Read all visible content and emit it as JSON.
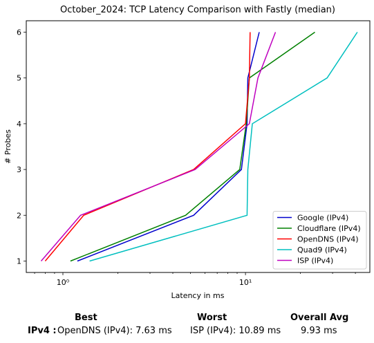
{
  "chart_data": {
    "type": "line",
    "title": "October_2024: TCP Latency Comparison with Fastly (median)",
    "xlabel": "Latency in ms",
    "ylabel": "# Probes",
    "xscale": "log",
    "xlim": [
      0.63,
      48
    ],
    "ylim": [
      0.75,
      6.25
    ],
    "x_ticks": [
      {
        "value": 1,
        "label": "10⁰"
      },
      {
        "value": 10,
        "label": "10¹"
      }
    ],
    "y_ticks": [
      1,
      2,
      3,
      4,
      5,
      6
    ],
    "grid": false,
    "legend_position": "bottom-right",
    "series": [
      {
        "name": "Google (IPv4)",
        "color": "#0000cc",
        "x": [
          1.2,
          5.2,
          9.5,
          10.2,
          10.3,
          11.9
        ],
        "y": [
          1,
          2,
          3,
          4,
          5,
          6
        ]
      },
      {
        "name": "Cloudflare (IPv4)",
        "color": "#008000",
        "x": [
          1.1,
          4.7,
          9.3,
          10.1,
          10.5,
          24.0
        ],
        "y": [
          1,
          2,
          3,
          4,
          5,
          6
        ]
      },
      {
        "name": "OpenDNS (IPv4)",
        "color": "#ff0000",
        "x": [
          0.8,
          1.3,
          5.2,
          10.0,
          10.5,
          10.6
        ],
        "y": [
          1,
          2,
          3,
          4,
          5,
          6
        ]
      },
      {
        "name": "Quad9 (IPv4)",
        "color": "#00bfbf",
        "x": [
          1.4,
          10.2,
          10.3,
          10.9,
          28.0,
          41.0
        ],
        "y": [
          1,
          2,
          3,
          4,
          5,
          6
        ]
      },
      {
        "name": "ISP (IPv4)",
        "color": "#bf00bf",
        "x": [
          0.76,
          1.25,
          5.3,
          10.5,
          11.7,
          14.6
        ],
        "y": [
          1,
          2,
          3,
          4,
          5,
          6
        ]
      }
    ]
  },
  "summary": {
    "best_header": "Best",
    "worst_header": "Worst",
    "avg_header": "Overall Avg",
    "row_label": "IPv4 :",
    "best_value": "OpenDNS (IPv4): 7.63 ms",
    "worst_value": "ISP (IPv4): 10.89 ms",
    "avg_value": "9.93 ms"
  }
}
